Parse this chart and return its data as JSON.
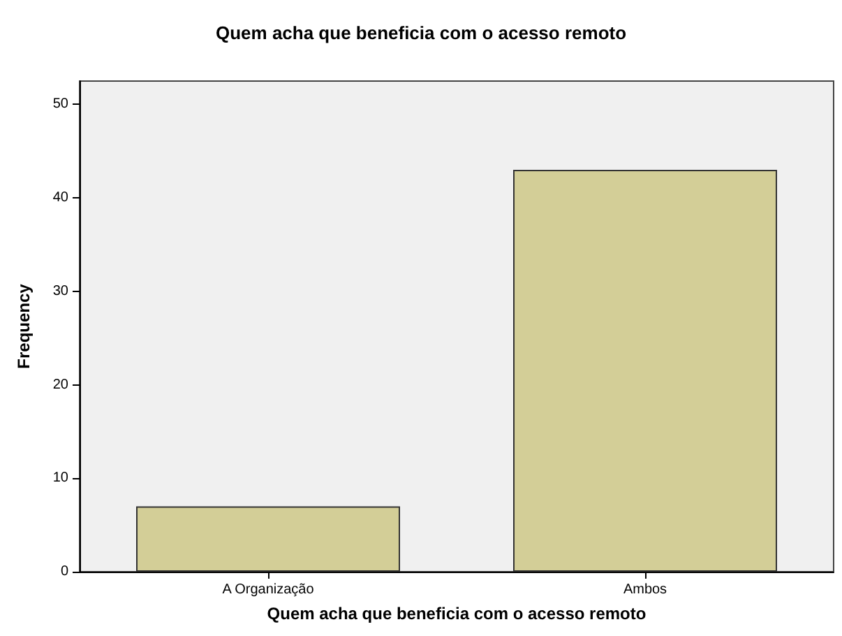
{
  "chart_data": {
    "type": "bar",
    "title": "Quem acha que beneficia com o acesso remoto",
    "xlabel": "Quem acha que beneficia com o acesso remoto",
    "ylabel": "Frequency",
    "categories": [
      "A Organização",
      "Ambos"
    ],
    "values": [
      7,
      43
    ],
    "color": "#d3ce97",
    "ylim": [
      0,
      52.5
    ],
    "yticks": [
      0,
      10,
      20,
      30,
      40,
      50
    ],
    "grid": false
  }
}
